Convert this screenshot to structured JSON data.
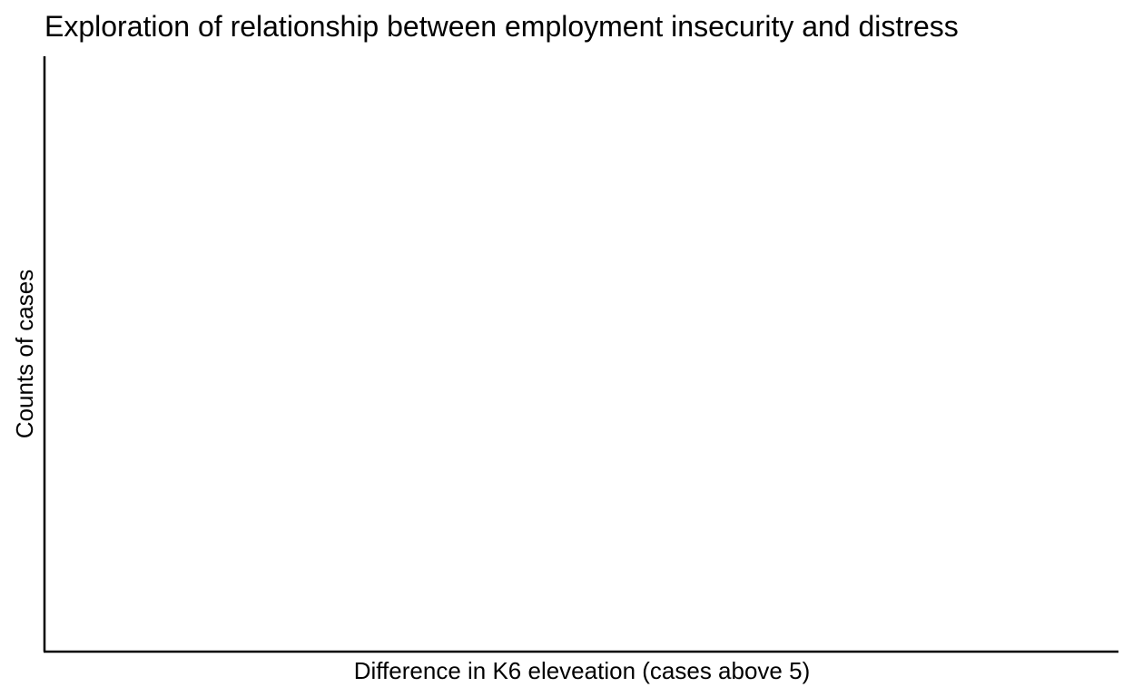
{
  "chart_data": {
    "type": "bar",
    "title": "Exploration of relationship between employment insecurity and distress",
    "xlabel": "Difference in K6 eleveation (cases above 5)",
    "ylabel": "Counts of cases",
    "categories": [],
    "values": [],
    "grid": false,
    "legend": "none",
    "colors": {
      "axis": "#000000",
      "background": "#ffffff",
      "text": "#000000"
    }
  }
}
